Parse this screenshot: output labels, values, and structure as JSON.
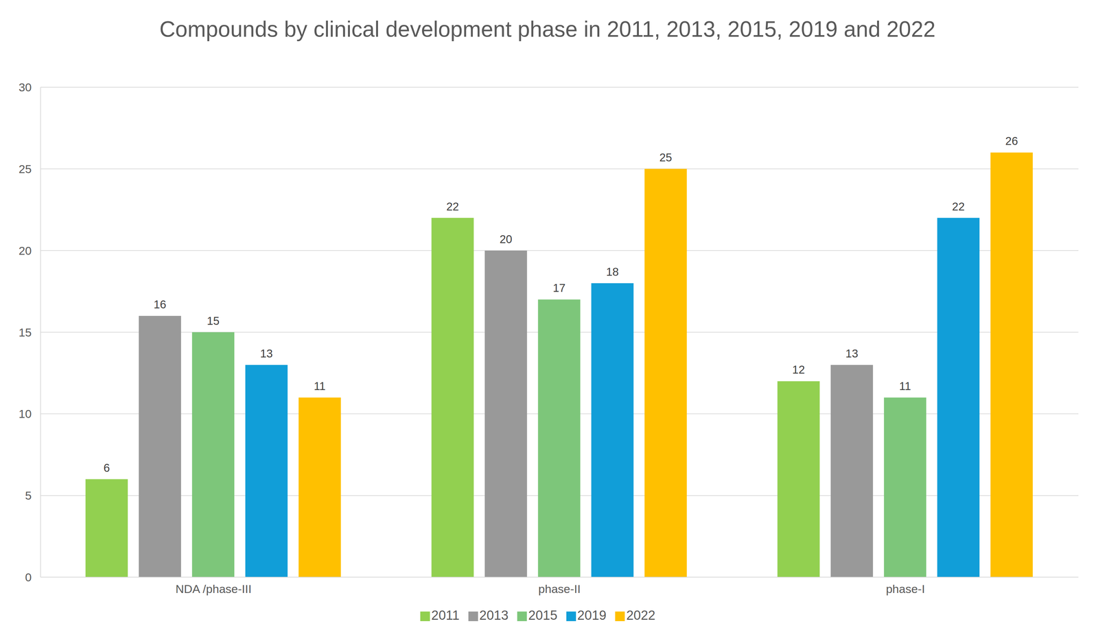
{
  "chart_data": {
    "type": "bar",
    "title": "Compounds by clinical development phase in 2011, 2013, 2015, 2019 and 2022",
    "categories": [
      "NDA /phase-III",
      "phase-II",
      "phase-I"
    ],
    "series": [
      {
        "name": "2011",
        "color": "#92d050",
        "values": [
          6,
          22,
          12
        ]
      },
      {
        "name": "2013",
        "color": "#999999",
        "values": [
          16,
          20,
          13
        ]
      },
      {
        "name": "2015",
        "color": "#7dc67a",
        "values": [
          15,
          17,
          11
        ]
      },
      {
        "name": "2019",
        "color": "#119ed8",
        "values": [
          13,
          18,
          22
        ]
      },
      {
        "name": "2022",
        "color": "#ffc000",
        "values": [
          11,
          25,
          26
        ]
      }
    ],
    "ylim": [
      0,
      30
    ],
    "yticks": [
      0,
      5,
      10,
      15,
      20,
      25,
      30
    ],
    "grid": true,
    "legend": "bottom",
    "data_labels": true
  }
}
